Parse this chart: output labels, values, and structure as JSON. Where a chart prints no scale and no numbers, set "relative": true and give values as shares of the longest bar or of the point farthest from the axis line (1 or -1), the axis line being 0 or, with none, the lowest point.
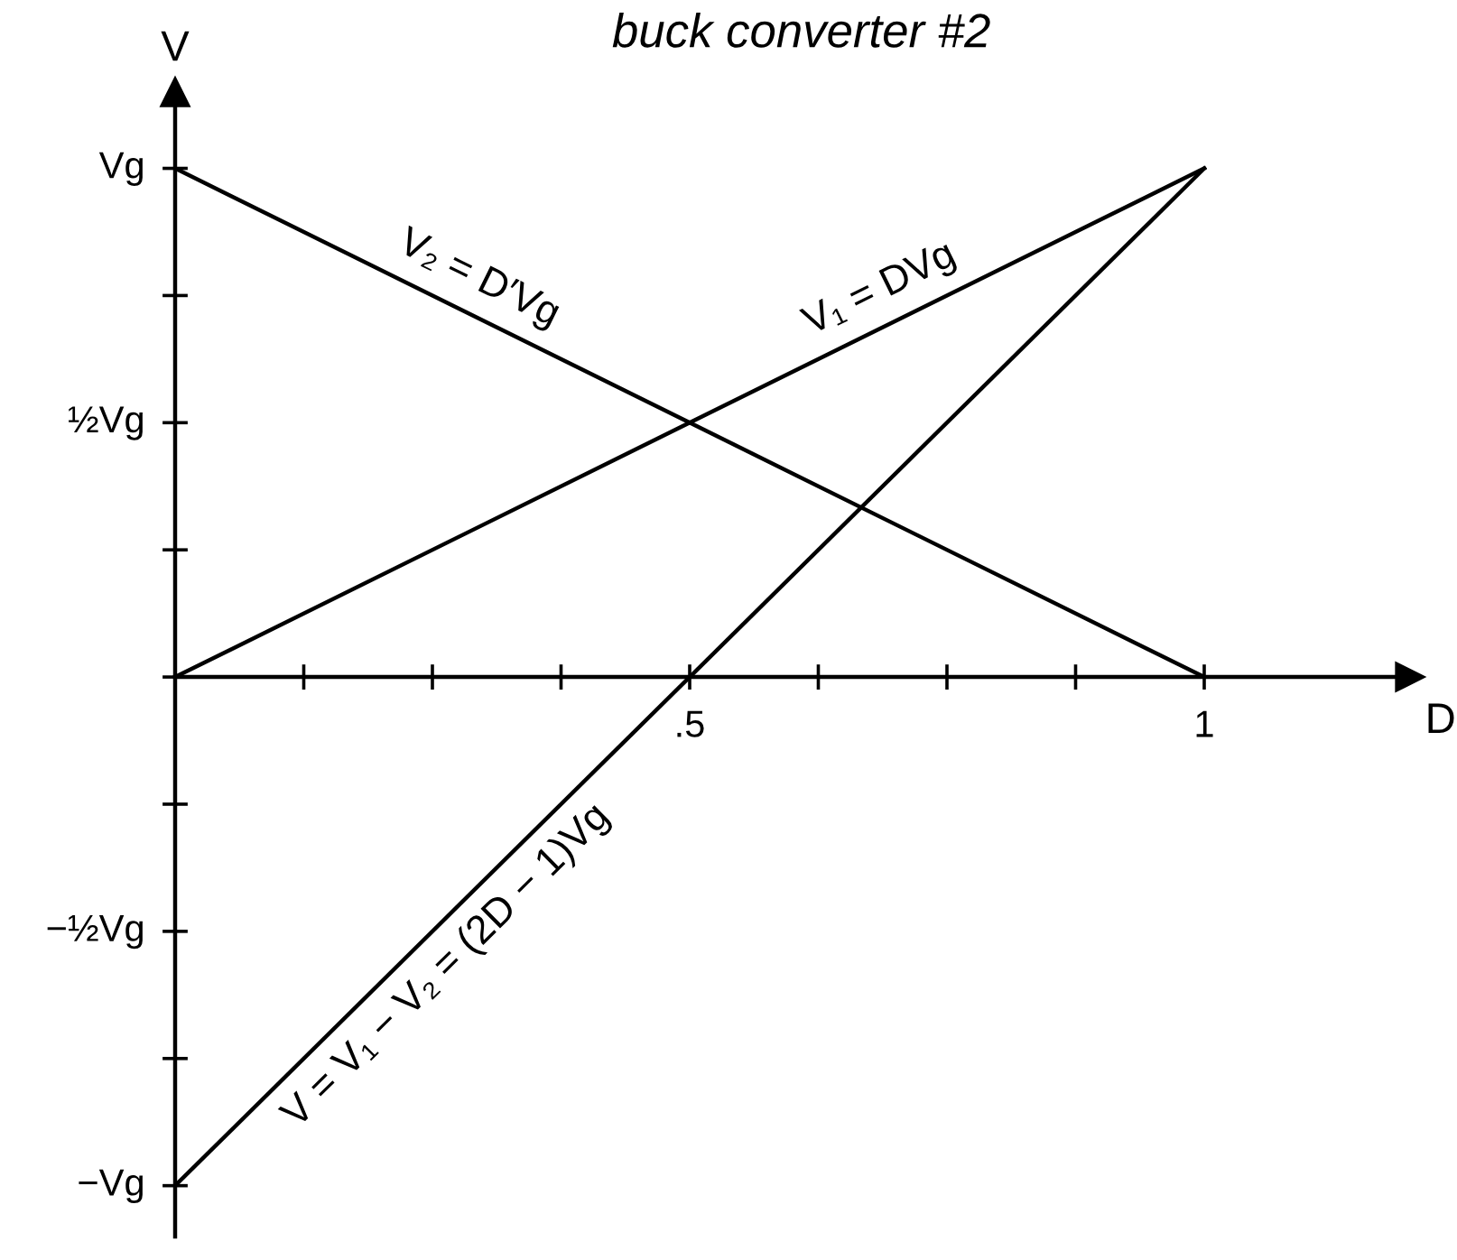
{
  "chart_data": {
    "type": "line",
    "title": "buck converter #2",
    "xlabel": "D",
    "ylabel": "V",
    "x": [
      0,
      1
    ],
    "series": [
      {
        "name": "V₂ = D′Vg",
        "color": "#000000",
        "values": [
          1,
          0
        ]
      },
      {
        "name": "V₁ = DVg",
        "color": "#000000",
        "values": [
          0,
          1
        ]
      },
      {
        "name": "V = V₁ − V₂ = (2D − 1)Vg",
        "color": "#000000",
        "values": [
          -1,
          1
        ]
      }
    ],
    "relative": true,
    "xlim": [
      0,
      1.2
    ],
    "xticks": [
      {
        "value": 0.125,
        "label": null
      },
      {
        "value": 0.25,
        "label": null
      },
      {
        "value": 0.375,
        "label": null
      },
      {
        "value": 0.5,
        "label": ".5"
      },
      {
        "value": 0.625,
        "label": null
      },
      {
        "value": 0.75,
        "label": null
      },
      {
        "value": 0.875,
        "label": null
      },
      {
        "value": 1,
        "label": "1"
      }
    ],
    "annotations": [
      {
        "text": "Vg",
        "x": 0,
        "y": 1
      },
      "½Vg",
      "−½Vg",
      {
        "text": "−Vg",
        "x": 0,
        "y": -1
      }
    ],
    "legend": false,
    "grid": false
  }
}
